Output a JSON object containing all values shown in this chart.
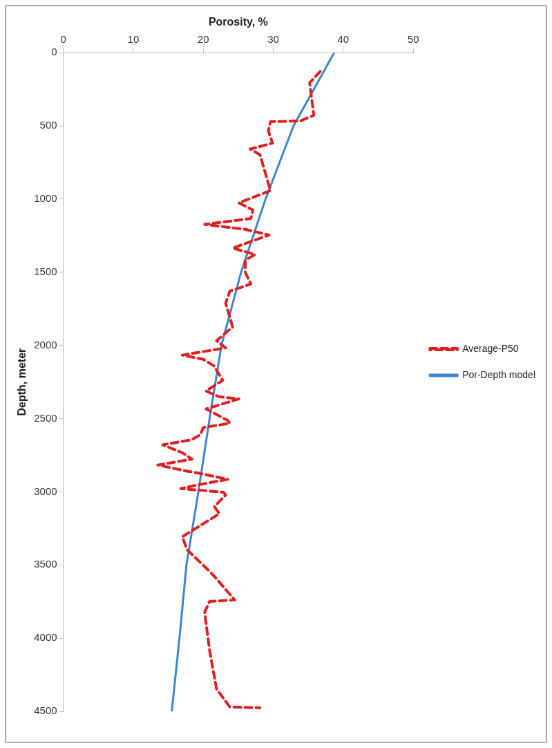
{
  "chart_data": {
    "type": "line",
    "xlabel": "Porosity, %",
    "ylabel": "Depth, meter",
    "xlim": [
      0,
      50
    ],
    "xticks": [
      0,
      10,
      20,
      30,
      40,
      50
    ],
    "ylim": [
      4500,
      0
    ],
    "yticks": [
      0,
      500,
      1000,
      1500,
      2000,
      2500,
      3000,
      3500,
      4000,
      4500
    ],
    "grid": false,
    "legend": "right",
    "marker": "none",
    "series": [
      {
        "name": "Average-P50",
        "color": "#e02020",
        "line_style": "dashed",
        "x": [
          36.7,
          35.2,
          35.8,
          33.9,
          29.6,
          29.3,
          29.9,
          26.7,
          28.1,
          28.7,
          29.6,
          25.1,
          27.1,
          26.8,
          20.2,
          26.0,
          29.4,
          24.2,
          27.4,
          26.0,
          26.0,
          26.8,
          23.8,
          23.2,
          24.2,
          21.9,
          23.2,
          17.0,
          20.0,
          21.5,
          22.8,
          20.4,
          22.2,
          25.1,
          20.4,
          23.5,
          23.8,
          20.0,
          19.6,
          18.3,
          14.2,
          17.0,
          18.4,
          13.5,
          17.4,
          19.6,
          23.5,
          19.6,
          16.8,
          22.9,
          23.2,
          21.6,
          22.3,
          17.0,
          17.7,
          21.3,
          24.5,
          20.9,
          20.2,
          20.9,
          21.9,
          23.8,
          28.1
        ],
        "values": [
          128,
          206,
          427,
          466,
          471,
          535,
          618,
          658,
          697,
          795,
          942,
          1026,
          1075,
          1133,
          1173,
          1207,
          1246,
          1335,
          1379,
          1418,
          1501,
          1580,
          1629,
          1712,
          1874,
          1968,
          2017,
          2066,
          2095,
          2139,
          2238,
          2311,
          2350,
          2365,
          2434,
          2512,
          2532,
          2561,
          2610,
          2645,
          2679,
          2733,
          2777,
          2817,
          2856,
          2875,
          2915,
          2949,
          2978,
          3003,
          3022,
          3101,
          3150,
          3307,
          3396,
          3562,
          3739,
          3749,
          3822,
          4082,
          4347,
          4470,
          4475
        ]
      },
      {
        "name": "Por-Depth model",
        "color": "#3a86d0",
        "line_style": "solid",
        "x": [
          38.7,
          32.9,
          28.9,
          25.4,
          22.6,
          20.9,
          19.3,
          17.6,
          16.6,
          15.5
        ],
        "values": [
          0,
          500,
          1000,
          1500,
          2000,
          2500,
          3000,
          3500,
          4000,
          4500
        ]
      }
    ]
  }
}
